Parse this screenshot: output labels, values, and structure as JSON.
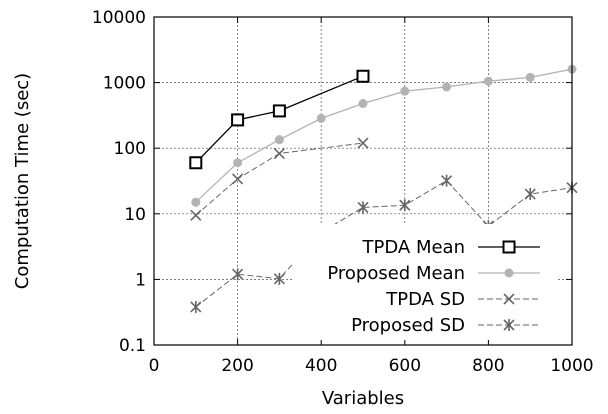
{
  "chart_data": {
    "type": "line",
    "xlabel": "Variables",
    "ylabel": "Computation Time (sec)",
    "x_scale": "linear",
    "y_scale": "log",
    "xlim": [
      0,
      1000
    ],
    "ylim": [
      0.1,
      10000
    ],
    "grid": true,
    "legend_position": "bottom-right",
    "x_ticks": [
      0,
      200,
      400,
      600,
      800,
      1000
    ],
    "x_tick_labels": [
      "0",
      "200",
      "400",
      "600",
      "800",
      "1000"
    ],
    "y_ticks": [
      0.1,
      1,
      10,
      100,
      1000,
      10000
    ],
    "y_tick_labels": [
      "0.1",
      "1",
      "10",
      "100",
      "1000",
      "10000"
    ],
    "series": [
      {
        "name": "TPDA Mean",
        "marker": "open-square",
        "line": "solid",
        "color": "#000000",
        "x": [
          100,
          200,
          300,
          500
        ],
        "y": [
          60,
          270,
          370,
          1250
        ]
      },
      {
        "name": "Proposed Mean",
        "marker": "filled-circle",
        "line": "solid",
        "color": "#b3b3b3",
        "x": [
          100,
          200,
          300,
          400,
          500,
          600,
          700,
          800,
          900,
          1000
        ],
        "y": [
          15,
          60,
          135,
          285,
          480,
          740,
          860,
          1050,
          1200,
          1600
        ]
      },
      {
        "name": "TPDA SD",
        "marker": "x",
        "line": "dashed",
        "color": "#666666",
        "x": [
          100,
          200,
          300,
          500
        ],
        "y": [
          9.5,
          34,
          83,
          120
        ]
      },
      {
        "name": "Proposed SD",
        "marker": "asterisk",
        "line": "dashed",
        "color": "#666666",
        "x": [
          100,
          200,
          300,
          400,
          500,
          600,
          700,
          800,
          900,
          1000
        ],
        "y": [
          0.38,
          1.2,
          1.02,
          5.2,
          12.5,
          13.5,
          32,
          6.5,
          20,
          25
        ]
      }
    ]
  }
}
